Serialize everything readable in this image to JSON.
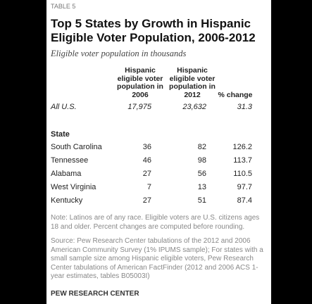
{
  "header": {
    "label": "TABLE 5",
    "title": "Top 5 States by Growth in Hispanic Eligible Voter Population, 2006-2012",
    "subtitle": "Eligible voter population in thousands"
  },
  "table": {
    "columns": [
      "Hispanic eligible voter population in 2006",
      "Hispanic eligible voter population in 2012",
      "% change"
    ],
    "total": [
      "All U.S.",
      "17,975",
      "23,632",
      31.3
    ],
    "group_label": "State",
    "rows": [
      [
        "South Carolina",
        36,
        82,
        126.2
      ],
      [
        "Tennessee",
        46,
        98,
        113.7
      ],
      [
        "Alabama",
        27,
        56,
        110.5
      ],
      [
        "West Virginia",
        7,
        13,
        97.7
      ],
      [
        "Kentucky",
        27,
        51,
        87.4
      ]
    ]
  },
  "note": "Note: Latinos are of any race. Eligible voters are U.S. citizens ages 18 and older. Percent changes are computed before rounding.",
  "source": "Source: Pew Research Center tabulations of the 2012 and 2006 American Community Survey (1% IPUMS sample); For states with a small sample size among Hispanic eligible voters, Pew Research Center tabulations of American FactFinder (2012 and 2006 ACS 1-year estimates, tables B05003I)",
  "footer": "PEW RESEARCH CENTER"
}
